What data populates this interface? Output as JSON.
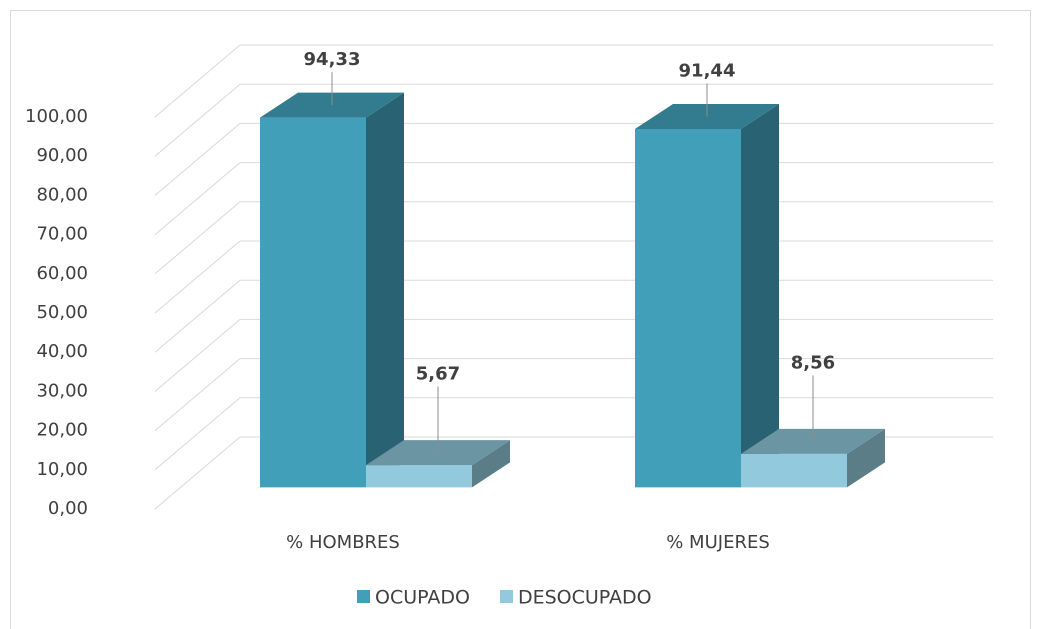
{
  "chart_data": {
    "type": "bar3d",
    "categories": [
      "% HOMBRES",
      "% MUJERES"
    ],
    "series": [
      {
        "name": "OCUPADO",
        "color": "#429fb9",
        "values": [
          94.33,
          91.44
        ],
        "value_labels": [
          "94,33",
          "91,44"
        ]
      },
      {
        "name": "DESOCUPADO",
        "color": "#92c9dc",
        "values": [
          5.67,
          8.56
        ],
        "value_labels": [
          "5,67",
          "8,56"
        ]
      }
    ],
    "ylim": [
      0,
      100
    ],
    "yticks": [
      {
        "value": 0,
        "label": "0,00"
      },
      {
        "value": 10,
        "label": "10,00"
      },
      {
        "value": 20,
        "label": "20,00"
      },
      {
        "value": 30,
        "label": "30,00"
      },
      {
        "value": 40,
        "label": "40,00"
      },
      {
        "value": 50,
        "label": "50,00"
      },
      {
        "value": 60,
        "label": "60,00"
      },
      {
        "value": 70,
        "label": "70,00"
      },
      {
        "value": 80,
        "label": "80,00"
      },
      {
        "value": 90,
        "label": "90,00"
      },
      {
        "value": 100,
        "label": "100,00"
      }
    ],
    "grid": true,
    "legend": "bottom"
  }
}
